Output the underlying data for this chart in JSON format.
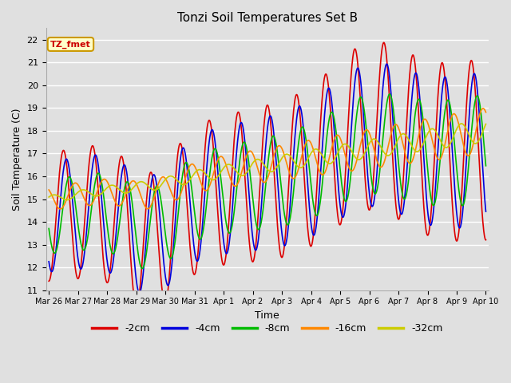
{
  "title": "Tonzi Soil Temperatures Set B",
  "xlabel": "Time",
  "ylabel": "Soil Temperature (C)",
  "ylim": [
    11.0,
    22.5
  ],
  "yticks": [
    11.0,
    12.0,
    13.0,
    14.0,
    15.0,
    16.0,
    17.0,
    18.0,
    19.0,
    20.0,
    21.0,
    22.0
  ],
  "annotation_label": "TZ_fmet",
  "annotation_color": "#cc0000",
  "annotation_bg": "#ffffcc",
  "annotation_border": "#cc9900",
  "series": {
    "-2cm": {
      "color": "#dd0000",
      "linewidth": 1.2
    },
    "-4cm": {
      "color": "#0000dd",
      "linewidth": 1.2
    },
    "-8cm": {
      "color": "#00bb00",
      "linewidth": 1.2
    },
    "-16cm": {
      "color": "#ff8800",
      "linewidth": 1.2
    },
    "-32cm": {
      "color": "#cccc00",
      "linewidth": 1.2
    }
  },
  "bg_color": "#e0e0e0",
  "plot_bg": "#e0e0e0",
  "grid_color": "#ffffff",
  "num_days": 15,
  "xtick_labels": [
    "Mar 26",
    "Mar 27",
    "Mar 28",
    "Mar 29",
    "Mar 30",
    "Mar 31",
    "Apr 1",
    "Apr 2",
    "Apr 3",
    "Apr 4",
    "Apr 5",
    "Apr 6",
    "Apr 7",
    "Apr 8",
    "Apr 9",
    "Apr 10"
  ]
}
